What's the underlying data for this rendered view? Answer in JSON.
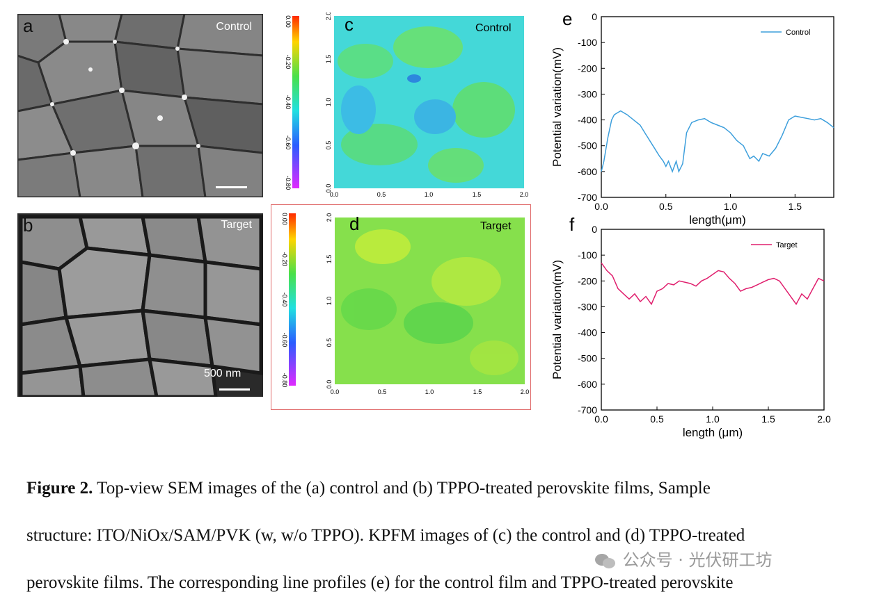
{
  "panels": {
    "a": {
      "letter": "a",
      "tag": "Control"
    },
    "b": {
      "letter": "b",
      "tag": "Target",
      "scalebar_label": "500 nm"
    },
    "c": {
      "letter": "c",
      "tag": "Control"
    },
    "d": {
      "letter": "d",
      "tag": "Target"
    },
    "e": {
      "letter": "e"
    },
    "f": {
      "letter": "f"
    }
  },
  "kpfm": {
    "colorbar_ticks": [
      "0.00",
      "-0.20",
      "-0.40",
      "-0.60",
      "-0.80"
    ],
    "axis_ticks": [
      "0.0",
      "0.5",
      "1.0",
      "1.5",
      "2.0"
    ],
    "axis_unit": "μm",
    "colors": {
      "control_base": "#3fd6e0",
      "target_base": "#7ee04a"
    }
  },
  "chart_data": [
    {
      "type": "line",
      "panel": "e",
      "xlabel": "length(μm)",
      "ylabel": "Potential variation(mV)",
      "xlim": [
        0.0,
        1.8
      ],
      "ylim": [
        -700,
        0
      ],
      "xticks": [
        "0.0",
        "0.5",
        "1.0",
        "1.5"
      ],
      "yticks": [
        "0",
        "-100",
        "-200",
        "-300",
        "-400",
        "-500",
        "-600",
        "-700"
      ],
      "legend_position": "top-right",
      "series": [
        {
          "name": "Control",
          "color": "#3d9fdc",
          "x": [
            0.0,
            0.02,
            0.05,
            0.08,
            0.1,
            0.15,
            0.2,
            0.25,
            0.3,
            0.35,
            0.4,
            0.45,
            0.48,
            0.5,
            0.52,
            0.55,
            0.58,
            0.6,
            0.63,
            0.66,
            0.7,
            0.75,
            0.8,
            0.85,
            0.9,
            0.95,
            1.0,
            1.05,
            1.1,
            1.15,
            1.18,
            1.22,
            1.25,
            1.3,
            1.35,
            1.4,
            1.45,
            1.5,
            1.55,
            1.6,
            1.65,
            1.7,
            1.75,
            1.8
          ],
          "y": [
            -600,
            -560,
            -470,
            -400,
            -380,
            -365,
            -380,
            -400,
            -420,
            -460,
            -500,
            -540,
            -560,
            -580,
            -560,
            -600,
            -560,
            -600,
            -570,
            -450,
            -410,
            -400,
            -395,
            -410,
            -420,
            -430,
            -450,
            -480,
            -500,
            -550,
            -540,
            -560,
            -530,
            -540,
            -510,
            -460,
            -400,
            -385,
            -390,
            -395,
            -400,
            -395,
            -410,
            -430
          ]
        }
      ]
    },
    {
      "type": "line",
      "panel": "f",
      "xlabel": "length (μm)",
      "ylabel": "Potential variation(mV)",
      "xlim": [
        0.0,
        2.0
      ],
      "ylim": [
        -700,
        0
      ],
      "xticks": [
        "0.0",
        "0.5",
        "1.0",
        "1.5",
        "2.0"
      ],
      "yticks": [
        "0",
        "-100",
        "-200",
        "-300",
        "-400",
        "-500",
        "-600",
        "-700"
      ],
      "legend_position": "top-right",
      "series": [
        {
          "name": "Target",
          "color": "#e0206e",
          "x": [
            0.0,
            0.05,
            0.1,
            0.15,
            0.2,
            0.25,
            0.3,
            0.35,
            0.4,
            0.45,
            0.5,
            0.55,
            0.6,
            0.65,
            0.7,
            0.75,
            0.8,
            0.85,
            0.9,
            0.95,
            1.0,
            1.05,
            1.1,
            1.15,
            1.2,
            1.25,
            1.3,
            1.35,
            1.4,
            1.45,
            1.5,
            1.55,
            1.6,
            1.65,
            1.7,
            1.75,
            1.8,
            1.85,
            1.9,
            1.95,
            2.0
          ],
          "y": [
            -130,
            -160,
            -180,
            -230,
            -250,
            -270,
            -250,
            -280,
            -260,
            -290,
            -240,
            -230,
            -210,
            -215,
            -200,
            -205,
            -210,
            -220,
            -200,
            -190,
            -175,
            -160,
            -165,
            -190,
            -210,
            -240,
            -230,
            -225,
            -215,
            -205,
            -195,
            -190,
            -200,
            -230,
            -260,
            -290,
            -250,
            -270,
            -230,
            -190,
            -200
          ]
        }
      ]
    }
  ],
  "caption": {
    "label": "Figure 2.",
    "line1": " Top-view SEM images of the (a) control and (b) TPPO-treated perovskite films, Sample",
    "line2": "structure: ITO/NiOx/SAM/PVK (w, w/o TPPO). KPFM images of (c) the control and (d) TPPO-treated",
    "line3": "perovskite films. The corresponding line profiles (e) for the control film and TPPO-treated perovskite"
  },
  "watermark": {
    "text": "公众号 · 光伏研工坊",
    "icon": "wechat-icon"
  }
}
